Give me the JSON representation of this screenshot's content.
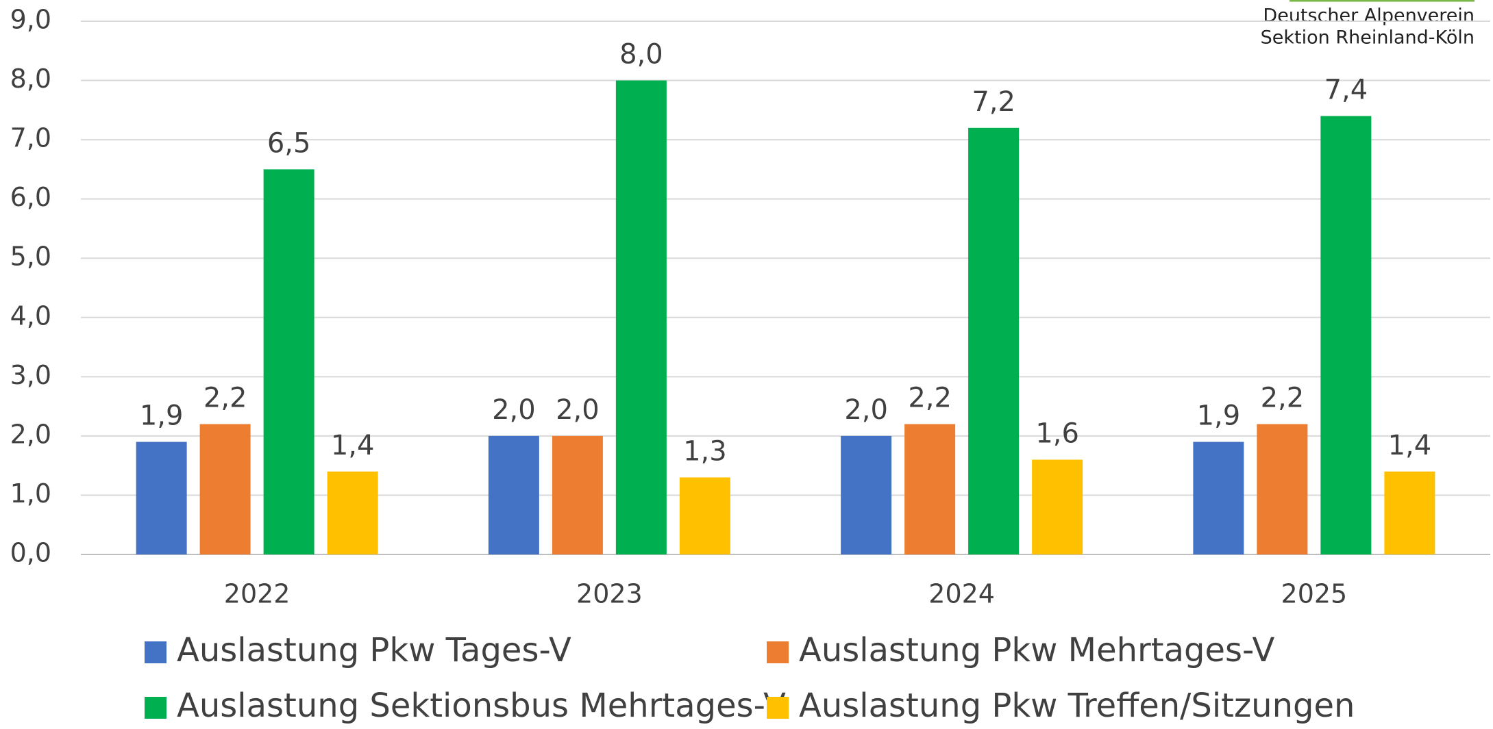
{
  "chart_data": {
    "type": "bar",
    "annotations": [
      "Deutscher Alpenverein",
      "Sektion Rheinland-Köln"
    ],
    "categories": [
      "2022",
      "2023",
      "2024",
      "2025"
    ],
    "series": [
      {
        "name": "Auslastung Pkw Tages-V",
        "color": "#4472c4",
        "values": [
          1.9,
          2.0,
          2.0,
          1.9
        ],
        "value_labels": [
          "1,9",
          "2,0",
          "2,0",
          "1,9"
        ]
      },
      {
        "name": "Auslastung Pkw Mehrtages-V",
        "color": "#ed7d31",
        "values": [
          2.2,
          2.0,
          2.2,
          2.2
        ],
        "value_labels": [
          "2,2",
          "2,0",
          "2,2",
          "2,2"
        ]
      },
      {
        "name": "Auslastung Sektionsbus Mehrtages-V",
        "color": "#00b050",
        "values": [
          6.5,
          8.0,
          7.2,
          7.4
        ],
        "value_labels": [
          "6,5",
          "8,0",
          "7,2",
          "7,4"
        ]
      },
      {
        "name": "Auslastung Pkw Treffen/Sitzungen",
        "color": "#ffc000",
        "values": [
          1.4,
          1.3,
          1.6,
          1.4
        ],
        "value_labels": [
          "1,4",
          "1,3",
          "1,6",
          "1,4"
        ]
      }
    ],
    "ylim": [
      0,
      9
    ],
    "yticks": [
      {
        "value": 0,
        "label": "0,0"
      },
      {
        "value": 1,
        "label": "1,0"
      },
      {
        "value": 2,
        "label": "2,0"
      },
      {
        "value": 3,
        "label": "3,0"
      },
      {
        "value": 4,
        "label": "4,0"
      },
      {
        "value": 5,
        "label": "5,0"
      },
      {
        "value": 6,
        "label": "6,0"
      },
      {
        "value": 7,
        "label": "7,0"
      },
      {
        "value": 8,
        "label": "8,0"
      },
      {
        "value": 9,
        "label": "9,0"
      }
    ],
    "grid": true,
    "legend": "bottom"
  }
}
